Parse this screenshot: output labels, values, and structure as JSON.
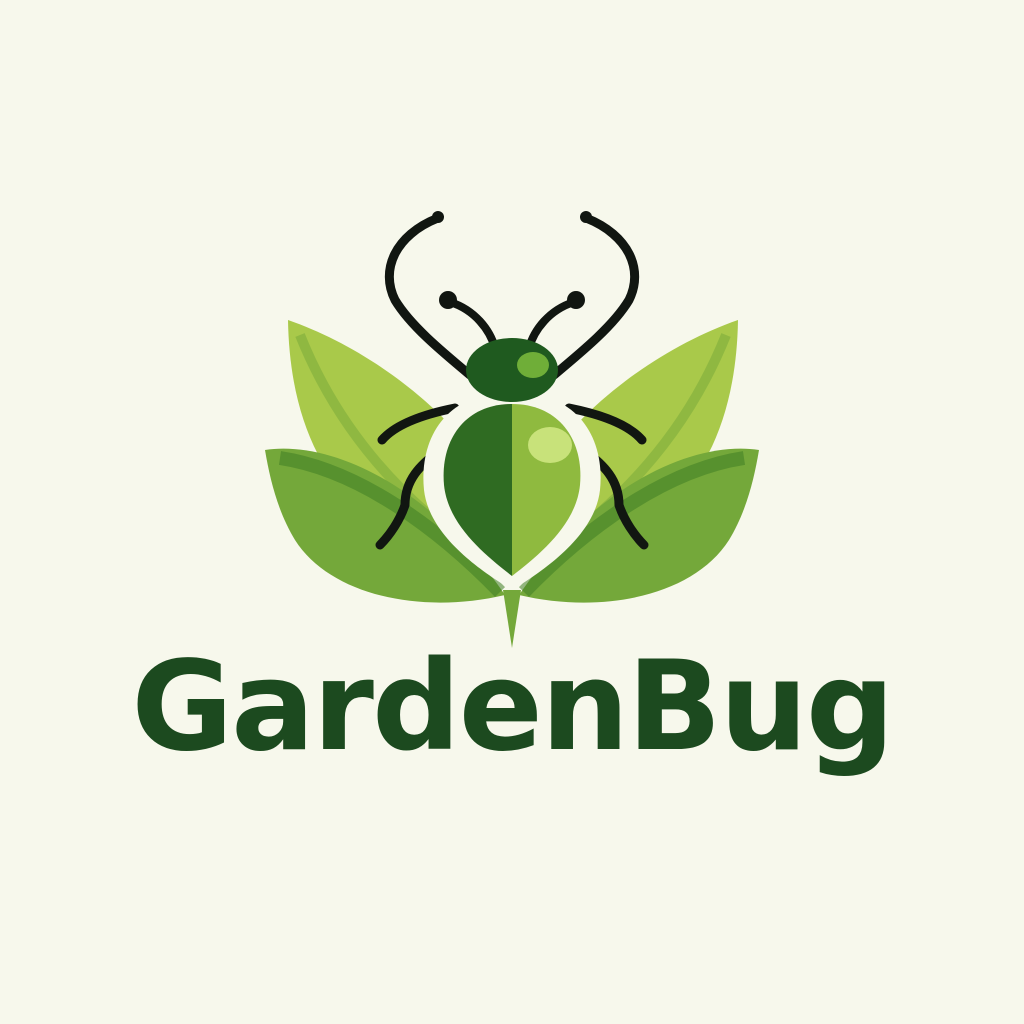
{
  "brand": {
    "name": "GardenBug"
  },
  "colors": {
    "background": "#f7f8ec",
    "wordmark": "#1c4a1f",
    "dark_green": "#1f5a1f",
    "mid_green": "#74a83a",
    "light_green": "#a9c94a",
    "outline": "#111611",
    "highlight": "#c8e27a"
  },
  "icons": {
    "emblem": "beetle-on-leaves-icon"
  }
}
